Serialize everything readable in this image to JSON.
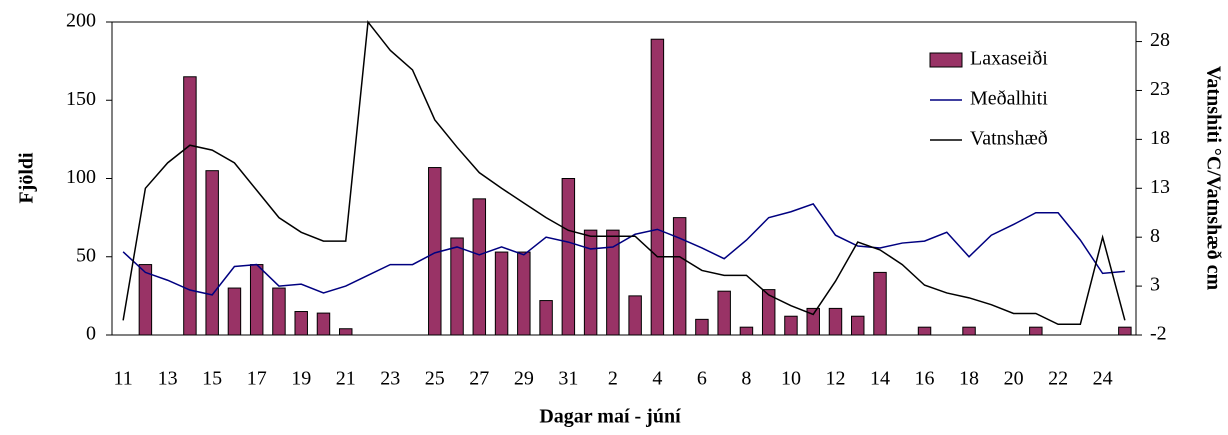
{
  "chart_data": {
    "type": "bar",
    "x_label": "Dagar maí - júní",
    "y_label": "Fjöldi",
    "y2_label": "Vatnshiti °C/Vatnshæð cm",
    "categories": [
      "11",
      null,
      "13",
      null,
      "15",
      null,
      "17",
      null,
      "19",
      null,
      "21",
      null,
      "23",
      null,
      "25",
      null,
      "27",
      null,
      "29",
      null,
      "31",
      null,
      "2",
      null,
      "4",
      null,
      "6",
      null,
      "8",
      null,
      "10",
      null,
      "12",
      null,
      "14",
      null,
      "16",
      null,
      "18",
      null,
      "20",
      null,
      "22",
      null,
      "24",
      null
    ],
    "series": [
      {
        "name": "Laxaseiði",
        "type": "bar",
        "color": "#993366",
        "values": [
          0,
          45,
          0,
          165,
          105,
          30,
          45,
          30,
          15,
          14,
          4,
          0,
          0,
          0,
          107,
          62,
          87,
          53,
          53,
          22,
          100,
          67,
          67,
          25,
          189,
          75,
          10,
          28,
          5,
          29,
          12,
          17,
          17,
          12,
          40,
          0,
          5,
          0,
          5,
          0,
          0,
          5,
          0,
          0,
          0,
          5
        ]
      },
      {
        "name": "Meðalhiti",
        "type": "line",
        "axis": "y2",
        "color": "#000080",
        "values": [
          6.5,
          4.4,
          3.6,
          2.6,
          2.1,
          5.0,
          5.2,
          3.0,
          3.2,
          2.3,
          3.0,
          4.1,
          5.2,
          5.2,
          6.4,
          7.0,
          6.2,
          7.0,
          6.2,
          8.0,
          7.5,
          6.8,
          7.0,
          8.3,
          8.8,
          7.9,
          6.9,
          5.8,
          7.7,
          10.0,
          10.6,
          11.4,
          8.2,
          7.1,
          6.9,
          7.4,
          7.6,
          8.5,
          6.0,
          8.2,
          9.3,
          10.5,
          10.5,
          7.7,
          4.3,
          4.5
        ]
      },
      {
        "name": "Vatnshæð",
        "type": "line",
        "axis": "y2",
        "color": "#000000",
        "values": [
          -0.5,
          13.0,
          15.6,
          17.4,
          16.9,
          15.6,
          12.8,
          10.0,
          8.5,
          7.6,
          7.6,
          30.0,
          27.1,
          25.1,
          20.0,
          17.2,
          14.6,
          13.0,
          11.5,
          10.0,
          8.7,
          8.1,
          8.1,
          8.1,
          6.0,
          6.0,
          4.6,
          4.1,
          4.1,
          2.1,
          1.0,
          0.1,
          3.5,
          7.5,
          6.7,
          5.2,
          3.1,
          2.3,
          1.8,
          1.1,
          0.2,
          0.2,
          -0.9,
          -0.9,
          8.0,
          -0.5
        ]
      }
    ],
    "ylim": [
      0,
      200
    ],
    "yticks": [
      0,
      50,
      100,
      150,
      200
    ],
    "y2lim": [
      -2,
      30
    ],
    "y2ticks": [
      -2,
      3,
      8,
      13,
      18,
      23,
      28
    ],
    "legend": "top-right",
    "grid": false
  }
}
